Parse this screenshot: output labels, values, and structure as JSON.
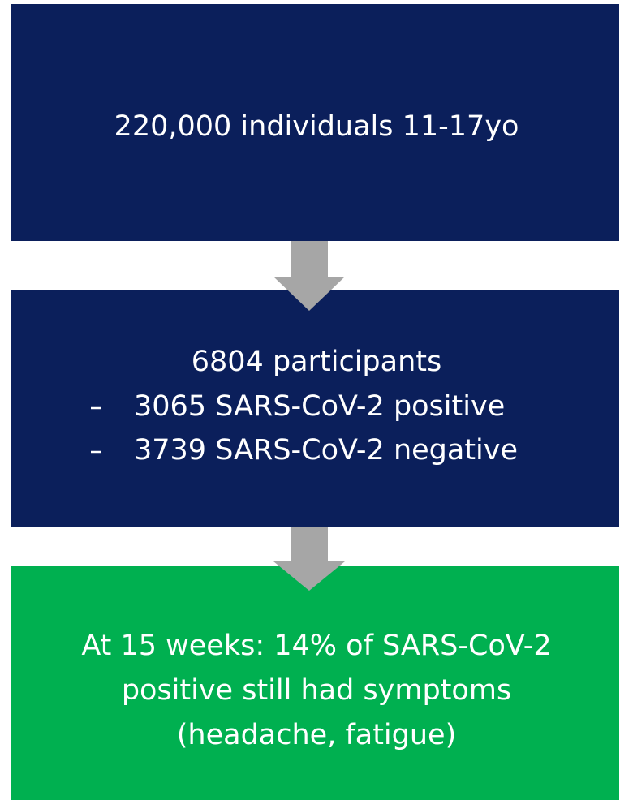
{
  "nodes": [
    {
      "label": "220,000 individuals 11-17yo"
    },
    {
      "label": "6804 participants",
      "items": [
        "3065 SARS-CoV-2 positive",
        "3739 SARS-CoV-2 negative"
      ]
    },
    {
      "lines": [
        "At 15 weeks: 14% of SARS-CoV-2",
        "positive still had symptoms",
        "(headache, fatigue)"
      ]
    }
  ]
}
